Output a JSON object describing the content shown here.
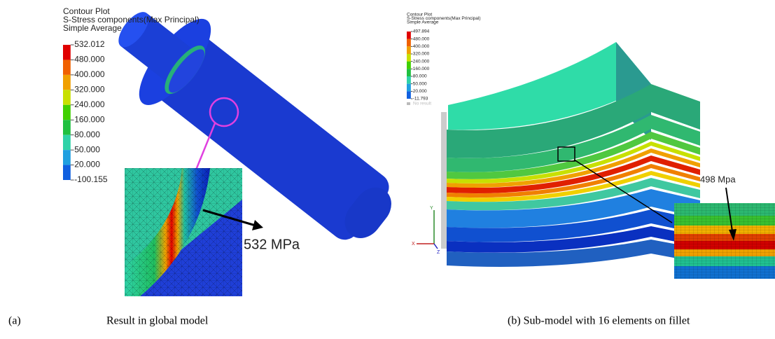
{
  "panels": [
    {
      "legend_title": [
        "Contour Plot",
        "S-Stress components(Max Principal)",
        "Simple Average"
      ],
      "legend_labels": [
        "532.012",
        "480.000",
        "400.000",
        "320.000",
        "240.000",
        "160.000",
        "80.000",
        "50.000",
        "20.000",
        "-100.155"
      ],
      "annotation": "532 MPa",
      "caption_label": "(a)",
      "caption": "Result in global model"
    },
    {
      "legend_title": [
        "Contour Plot",
        "S-Stress components(Max Principal)",
        "Simple Average"
      ],
      "legend_labels": [
        "497.894",
        "480.000",
        "400.000",
        "320.000",
        "240.000",
        "160.000",
        "80.000",
        "50.000",
        "20.000",
        "-11.793"
      ],
      "no_result": "No result",
      "axes": [
        "Y",
        "X",
        "Z"
      ],
      "annotation": "498 Mpa",
      "caption": "(b) Sub-model with 16 elements on fillet"
    }
  ]
}
